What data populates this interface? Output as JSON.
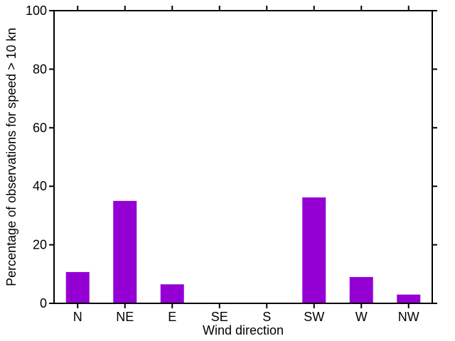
{
  "chart_data": {
    "type": "bar",
    "title": "",
    "categories": [
      "N",
      "NE",
      "E",
      "SE",
      "S",
      "SW",
      "W",
      "NW"
    ],
    "values": [
      10.7,
      35,
      6.5,
      0,
      0,
      36.2,
      9,
      3
    ],
    "xlabel": "Wind direction",
    "ylabel": "Percentage of observations for speed > 10 kn",
    "ylim": [
      0,
      100
    ],
    "yticks": [
      0,
      20,
      40,
      60,
      80,
      100
    ],
    "grid": false,
    "legend": "none",
    "bar_color": "#9400d3",
    "axis_color": "#000000",
    "background_color": "#ffffff"
  }
}
